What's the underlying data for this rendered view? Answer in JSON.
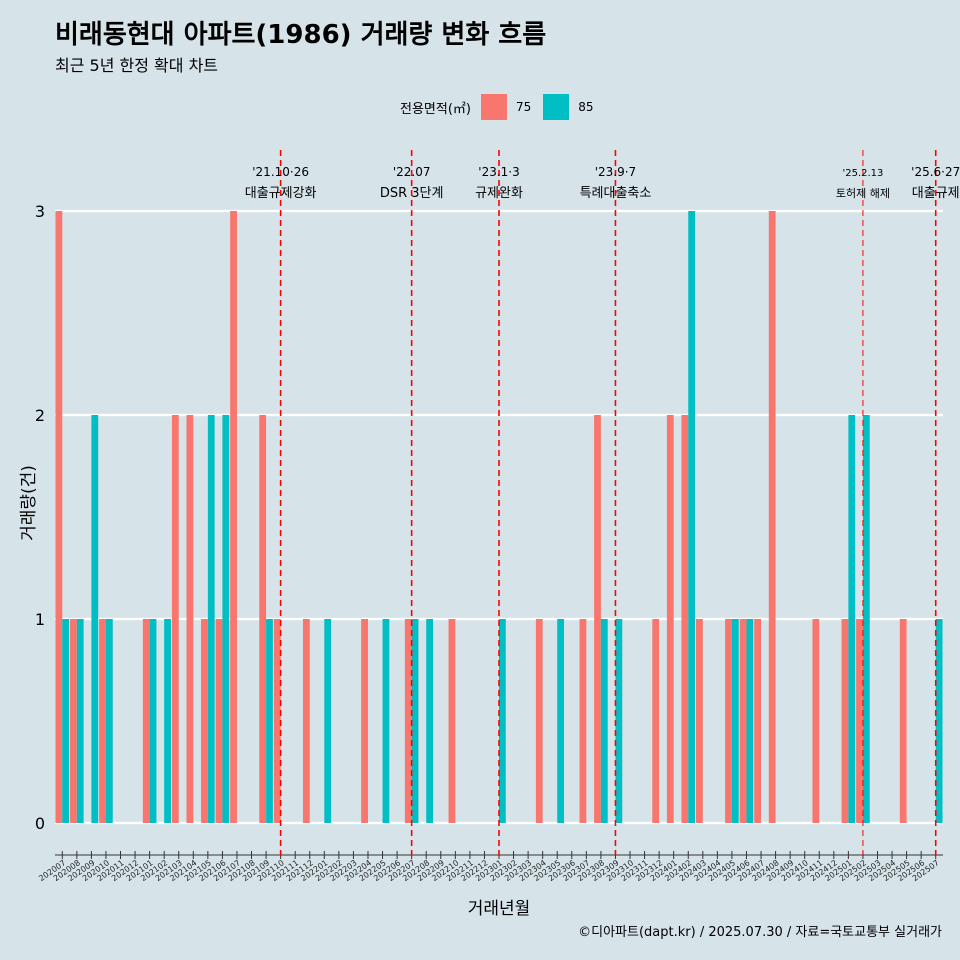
{
  "title": "비래동현대 아파트(1986) 거래량 변화 흐름",
  "subtitle": "최근 5년 한정 확대 차트",
  "legend": {
    "title": "전용면적(㎡)",
    "items": [
      {
        "label": "75",
        "color": "#F8766D"
      },
      {
        "label": "85",
        "color": "#00BFC4"
      }
    ]
  },
  "caption": "©디아파트(dapt.kr) / 2025.07.30 / 자료=국토교통부 실거래가",
  "chart_data": {
    "type": "bar",
    "xlabel": "거래년월",
    "ylabel": "거래량(건)",
    "ylim": [
      0,
      3
    ],
    "yticks": [
      0,
      1,
      2,
      3
    ],
    "grid": true,
    "legend_position": "top",
    "categories": [
      "202007",
      "202008",
      "202009",
      "202010",
      "202011",
      "202012",
      "202101",
      "202102",
      "202103",
      "202104",
      "202105",
      "202106",
      "202107",
      "202108",
      "202109",
      "202110",
      "202111",
      "202112",
      "202201",
      "202202",
      "202203",
      "202204",
      "202205",
      "202206",
      "202207",
      "202208",
      "202209",
      "202210",
      "202211",
      "202212",
      "202301",
      "202302",
      "202303",
      "202304",
      "202305",
      "202306",
      "202307",
      "202308",
      "202309",
      "202310",
      "202311",
      "202312",
      "202401",
      "202402",
      "202403",
      "202404",
      "202405",
      "202406",
      "202407",
      "202408",
      "202409",
      "202410",
      "202411",
      "202412",
      "202501",
      "202502",
      "202503",
      "202504",
      "202505",
      "202506",
      "202507"
    ],
    "series": [
      {
        "name": "75",
        "color": "#F8766D",
        "values": [
          3,
          1,
          0,
          1,
          0,
          0,
          1,
          0,
          2,
          2,
          1,
          1,
          3,
          0,
          2,
          1,
          0,
          1,
          0,
          0,
          0,
          1,
          0,
          0,
          1,
          0,
          0,
          1,
          0,
          0,
          0,
          0,
          0,
          1,
          0,
          0,
          1,
          2,
          0,
          0,
          0,
          1,
          2,
          2,
          1,
          0,
          1,
          1,
          1,
          3,
          0,
          0,
          1,
          0,
          1,
          1,
          0,
          0,
          1,
          0,
          0
        ]
      },
      {
        "name": "85",
        "color": "#00BFC4",
        "values": [
          1,
          1,
          2,
          1,
          0,
          0,
          1,
          1,
          0,
          0,
          2,
          2,
          0,
          0,
          1,
          0,
          0,
          0,
          1,
          0,
          0,
          0,
          1,
          0,
          1,
          1,
          0,
          0,
          0,
          0,
          1,
          0,
          0,
          0,
          1,
          0,
          0,
          1,
          1,
          0,
          0,
          0,
          0,
          3,
          0,
          0,
          1,
          1,
          0,
          0,
          0,
          0,
          0,
          0,
          2,
          2,
          0,
          0,
          0,
          0,
          1
        ]
      }
    ],
    "annotations": [
      {
        "date_line": "'21.10·26",
        "event": "대출규제강화",
        "month": "202110"
      },
      {
        "date_line": "'22.07",
        "event": "DSR 3단계",
        "month": "202207"
      },
      {
        "date_line": "'23.1·3",
        "event": "규제완화",
        "month": "202301"
      },
      {
        "date_line": "'23.9·7",
        "event": "특례대출축소",
        "month": "202309"
      },
      {
        "date_line": "'25.2.13",
        "event": "토허제 해제",
        "month": "202502"
      },
      {
        "date_line": "'25.6·27",
        "event": "대출규제",
        "month": "202507"
      }
    ]
  }
}
